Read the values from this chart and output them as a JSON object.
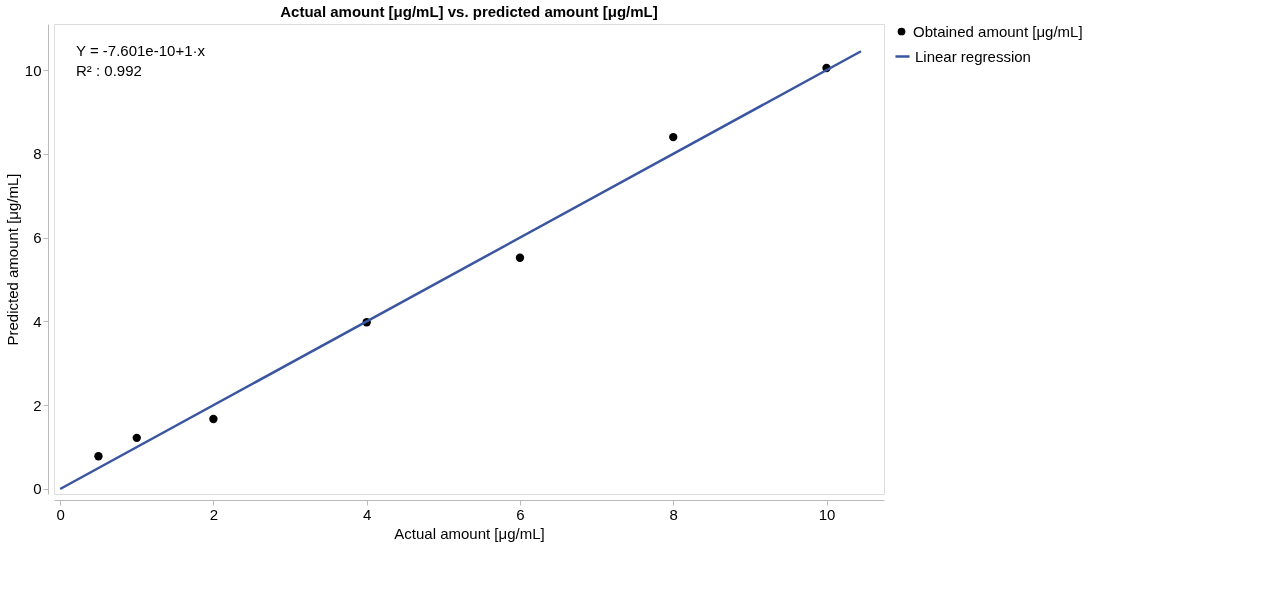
{
  "chart_data": {
    "type": "scatter",
    "title": "Actual amount [μg/mL] vs. predicted amount [μg/mL]",
    "xlabel": "Actual amount [μg/mL]",
    "ylabel": "Predicted amount [μg/mL]",
    "x": [
      0.5,
      1,
      2,
      4,
      6,
      8,
      10
    ],
    "series": [
      {
        "name": "Obtained amount [μg/mL]",
        "color": "#000000",
        "marker": "circle",
        "values": [
          0.78,
          1.22,
          1.67,
          3.98,
          5.52,
          8.4,
          10.05
        ]
      },
      {
        "name": "Linear regression",
        "type": "line",
        "color": "#3a56a0",
        "x": [
          0,
          10.45
        ],
        "values": [
          0,
          10.45
        ]
      }
    ],
    "xlim": [
      -0.08,
      10.75
    ],
    "ylim": [
      -0.12,
      11.1
    ],
    "xticks": [
      0,
      2,
      4,
      6,
      8,
      10
    ],
    "yticks": [
      0,
      2,
      4,
      6,
      8,
      10
    ],
    "annotations": [
      "Y = -7.601e-10+1·x",
      "R² : 0.992"
    ],
    "grid": false,
    "legend": "top right",
    "line_style": "solid"
  }
}
